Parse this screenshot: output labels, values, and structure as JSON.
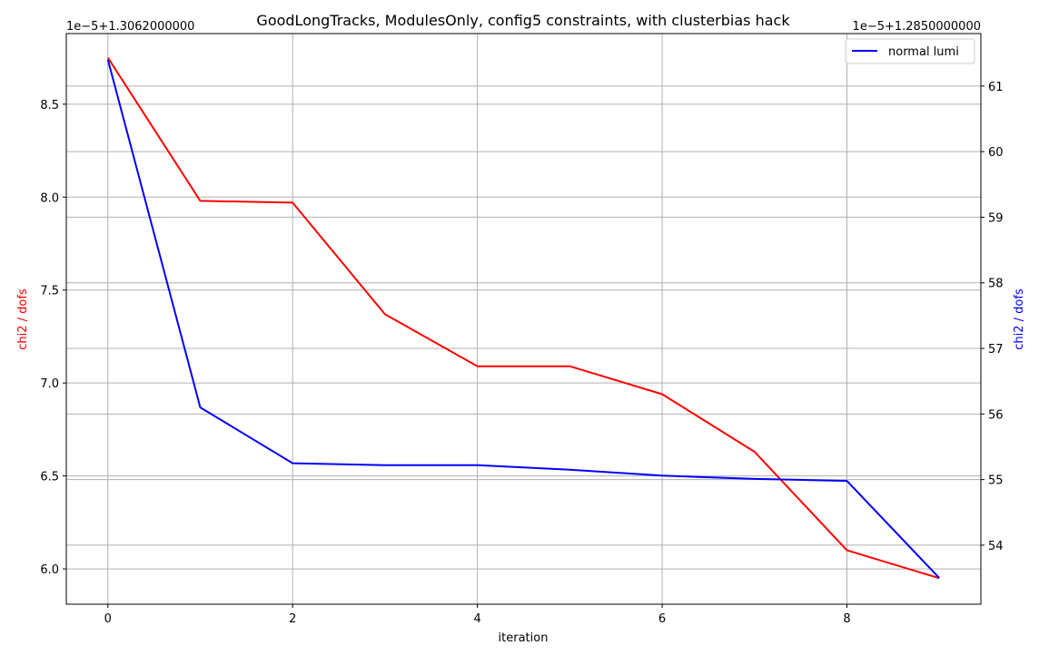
{
  "chart_data": {
    "type": "line",
    "title": "GoodLongTracks, ModulesOnly, config5 constraints, with clusterbias hack",
    "xlabel": "iteration",
    "xlim": [
      -0.45,
      9.45
    ],
    "xticks": [
      "0",
      "2",
      "4",
      "6",
      "8"
    ],
    "grid": true,
    "legend_position": "top-right",
    "series": [
      {
        "axis": "left",
        "color": "#ff0000",
        "ylabel": "chi2 / dofs",
        "offset_text": "1e−5+1.3062000000",
        "ylim": [
          5.81,
          8.88
        ],
        "yticks": [
          "6.0",
          "6.5",
          "7.0",
          "7.5",
          "8.0",
          "8.5"
        ],
        "x": [
          0,
          1,
          2,
          3,
          4,
          5,
          6,
          7,
          8,
          9
        ],
        "values": [
          8.75,
          7.98,
          7.97,
          7.37,
          7.09,
          7.09,
          6.94,
          6.63,
          6.1,
          5.95
        ]
      },
      {
        "name": "normal lumi",
        "axis": "right",
        "color": "#0000ff",
        "ylabel": "chi2 / dofs",
        "offset_text": "1e−5+1.2850000000",
        "ylim": [
          53.1,
          61.8
        ],
        "yticks": [
          "54",
          "55",
          "56",
          "57",
          "58",
          "59",
          "60",
          "61"
        ],
        "x": [
          0,
          1,
          2,
          3,
          4,
          5,
          6,
          7,
          8,
          9
        ],
        "values": [
          61.4,
          56.1,
          55.25,
          55.22,
          55.22,
          55.15,
          55.06,
          55.01,
          54.98,
          53.5
        ]
      }
    ]
  }
}
